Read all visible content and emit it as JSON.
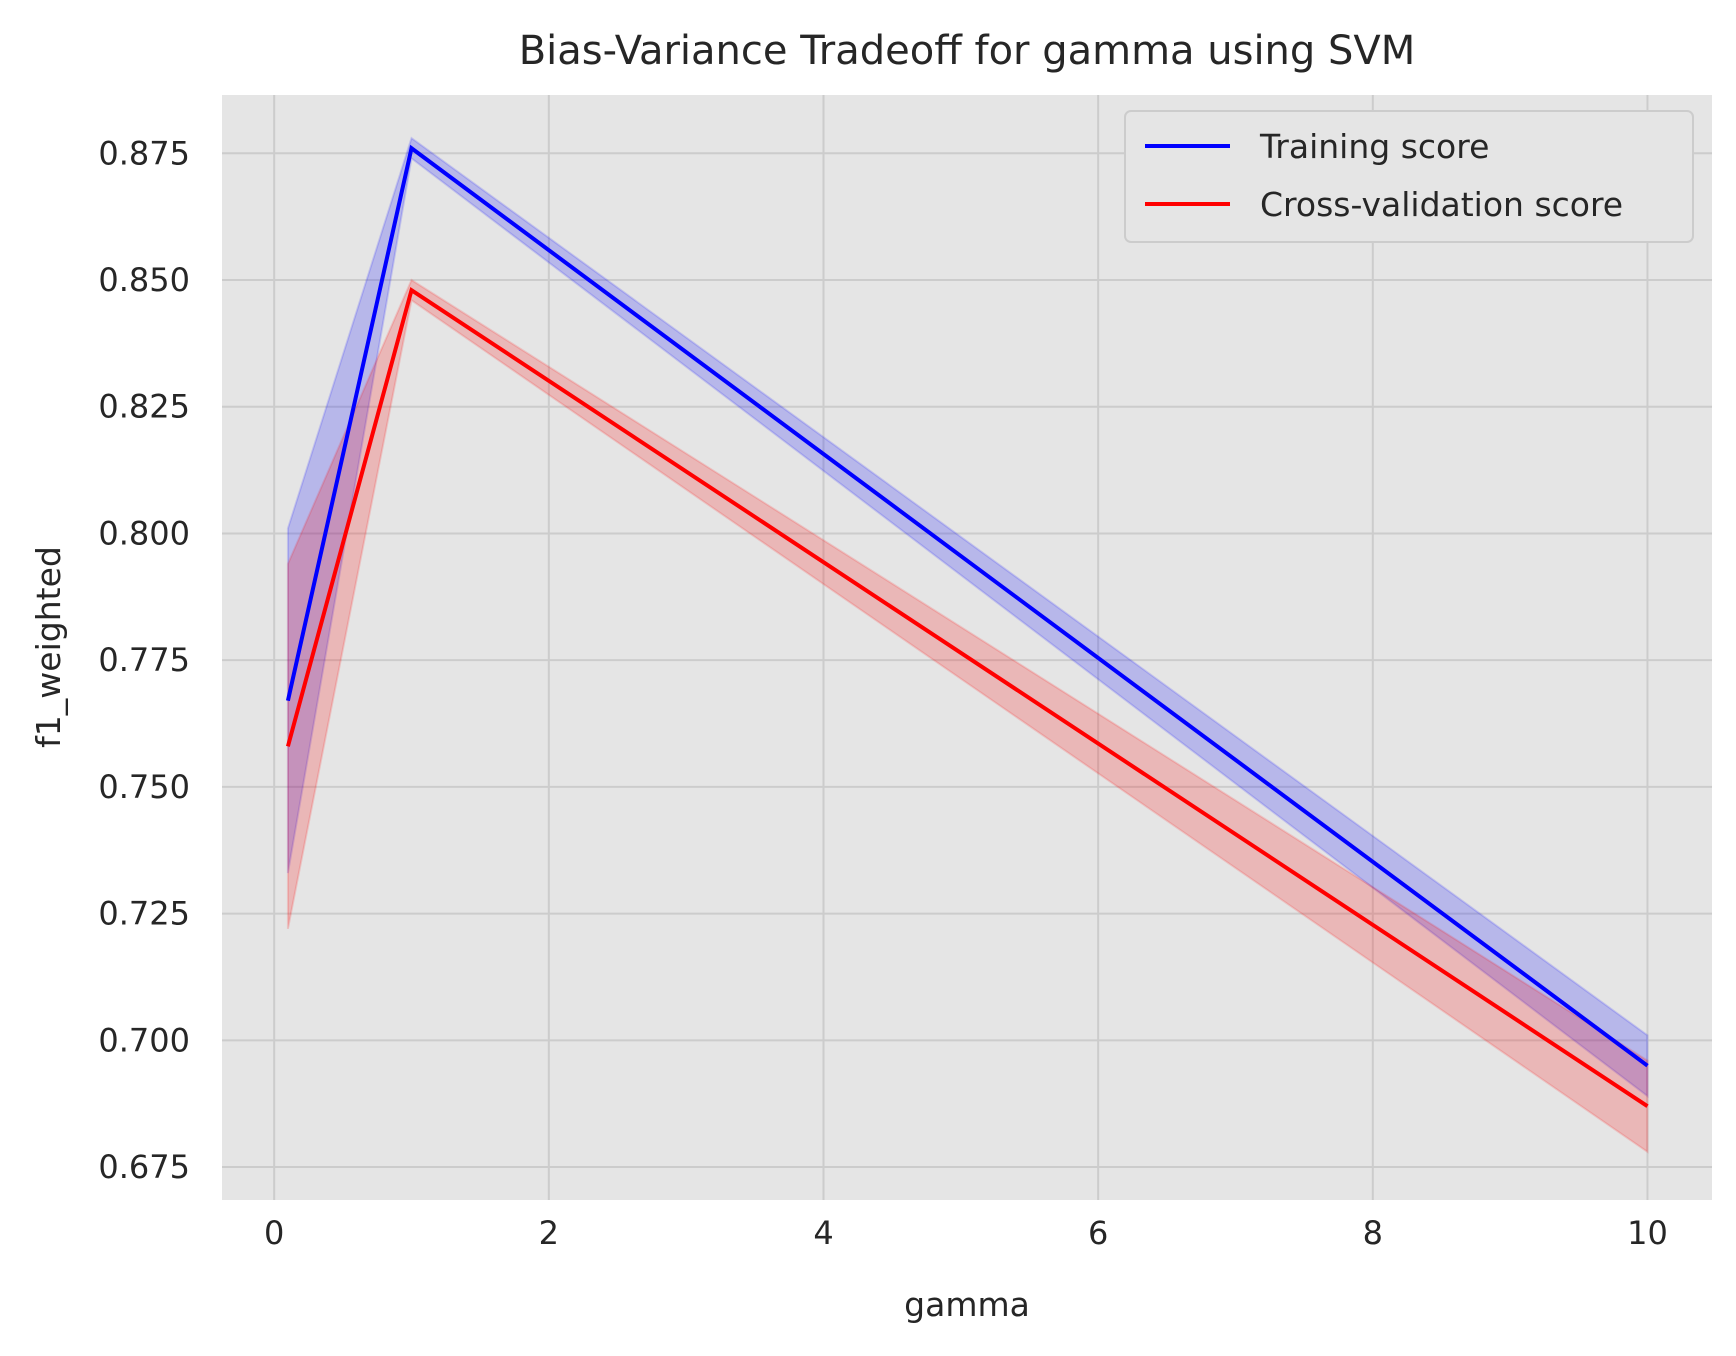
{
  "chart_data": {
    "type": "line",
    "title": "Bias-Variance Tradeoff for gamma using SVM",
    "xlabel": "gamma",
    "ylabel": "f1_weighted",
    "xlim": [
      -0.38,
      10.47
    ],
    "ylim": [
      0.6685,
      0.8865
    ],
    "xticks": [
      0,
      2,
      4,
      6,
      8,
      10
    ],
    "xtick_labels": [
      "0",
      "2",
      "4",
      "6",
      "8",
      "10"
    ],
    "yticks": [
      0.675,
      0.7,
      0.725,
      0.75,
      0.775,
      0.8,
      0.825,
      0.85,
      0.875
    ],
    "ytick_labels": [
      "0.675",
      "0.700",
      "0.725",
      "0.750",
      "0.775",
      "0.800",
      "0.825",
      "0.850",
      "0.875"
    ],
    "grid": true,
    "legend_position": "top-right",
    "x": [
      0.1,
      1,
      10
    ],
    "series": [
      {
        "name": "Training score",
        "color": "#0000ff",
        "values": [
          0.767,
          0.876,
          0.695
        ],
        "lower": [
          0.733,
          0.874,
          0.689
        ],
        "upper": [
          0.801,
          0.878,
          0.701
        ]
      },
      {
        "name": "Cross-validation score",
        "color": "#ff0000",
        "values": [
          0.758,
          0.848,
          0.687
        ],
        "lower": [
          0.722,
          0.846,
          0.678
        ],
        "upper": [
          0.794,
          0.85,
          0.696
        ]
      }
    ]
  }
}
